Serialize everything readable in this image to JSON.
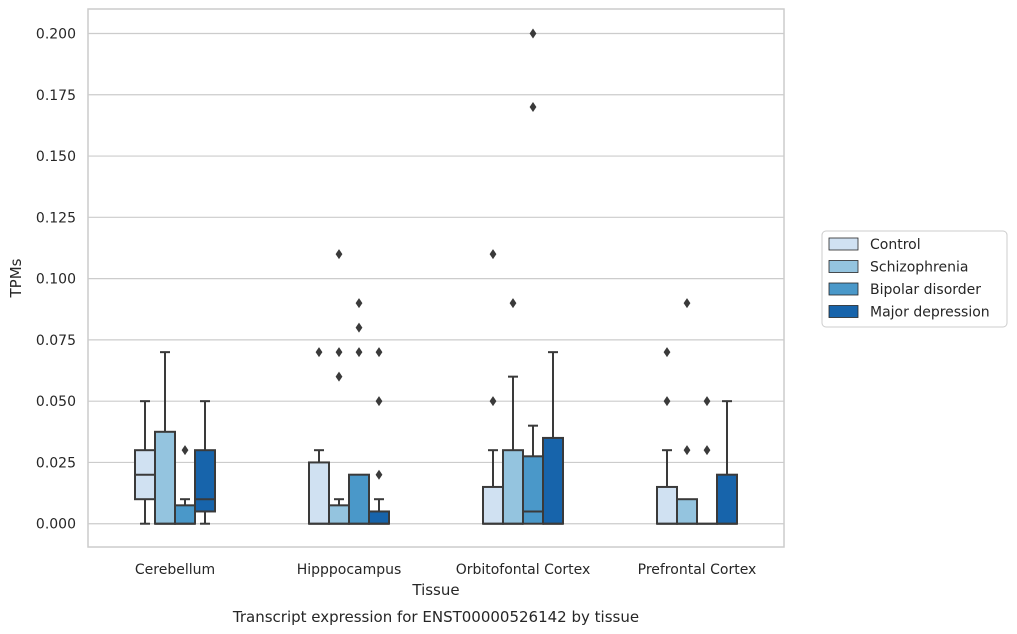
{
  "chart_data": {
    "type": "boxplot",
    "caption": "Transcript expression for ENST00000526142 by tissue",
    "xlabel": "Tissue",
    "ylabel": "TPMs",
    "ylim": [
      -0.0095,
      0.21
    ],
    "yticks": [
      0.0,
      0.025,
      0.05,
      0.075,
      0.1,
      0.125,
      0.15,
      0.175,
      0.2
    ],
    "ytick_labels": [
      "0.000",
      "0.025",
      "0.050",
      "0.075",
      "0.100",
      "0.125",
      "0.150",
      "0.175",
      "0.200"
    ],
    "grid": "horizontal",
    "legend_position": "right",
    "categories": [
      "Cerebellum",
      "Hipppocampus",
      "Orbitofontal Cortex",
      "Prefrontal Cortex"
    ],
    "series": [
      {
        "name": "Control",
        "color": "#d0e1f2",
        "boxes": [
          {
            "whislo": 0.0,
            "q1": 0.01,
            "med": 0.02,
            "q3": 0.03,
            "whishi": 0.05,
            "fliers": []
          },
          {
            "whislo": 0.0,
            "q1": 0.0,
            "med": 0.0,
            "q3": 0.025,
            "whishi": 0.03,
            "fliers": [
              0.07
            ]
          },
          {
            "whislo": 0.0,
            "q1": 0.0,
            "med": 0.0,
            "q3": 0.015,
            "whishi": 0.03,
            "fliers": [
              0.05,
              0.11
            ]
          },
          {
            "whislo": 0.0,
            "q1": 0.0,
            "med": 0.0,
            "q3": 0.015,
            "whishi": 0.03,
            "fliers": [
              0.05,
              0.07
            ]
          }
        ]
      },
      {
        "name": "Schizophrenia",
        "color": "#94c4df",
        "boxes": [
          {
            "whislo": 0.0,
            "q1": 0.0,
            "med": 0.0,
            "q3": 0.0375,
            "whishi": 0.07,
            "fliers": []
          },
          {
            "whislo": 0.0,
            "q1": 0.0,
            "med": 0.0,
            "q3": 0.0075,
            "whishi": 0.01,
            "fliers": [
              0.06,
              0.07,
              0.11
            ]
          },
          {
            "whislo": 0.0,
            "q1": 0.0,
            "med": 0.0,
            "q3": 0.03,
            "whishi": 0.06,
            "fliers": [
              0.09
            ]
          },
          {
            "whislo": 0.0,
            "q1": 0.0,
            "med": 0.0,
            "q3": 0.01,
            "whishi": 0.01,
            "fliers": [
              0.03,
              0.09
            ]
          }
        ]
      },
      {
        "name": "Bipolar disorder",
        "color": "#4a98c9",
        "boxes": [
          {
            "whislo": 0.0,
            "q1": 0.0,
            "med": 0.0,
            "q3": 0.0075,
            "whishi": 0.01,
            "fliers": [
              0.03
            ]
          },
          {
            "whislo": 0.0,
            "q1": 0.0,
            "med": 0.0,
            "q3": 0.02,
            "whishi": 0.02,
            "fliers": [
              0.07,
              0.08,
              0.09
            ]
          },
          {
            "whislo": 0.0,
            "q1": 0.0,
            "med": 0.005,
            "q3": 0.0275,
            "whishi": 0.04,
            "fliers": [
              0.17,
              0.2
            ]
          },
          {
            "whislo": 0.0,
            "q1": 0.0,
            "med": 0.0,
            "q3": 0.0,
            "whishi": 0.0,
            "fliers": [
              0.03,
              0.05
            ]
          }
        ]
      },
      {
        "name": "Major depression",
        "color": "#1764ab",
        "boxes": [
          {
            "whislo": 0.0,
            "q1": 0.005,
            "med": 0.01,
            "q3": 0.03,
            "whishi": 0.05,
            "fliers": []
          },
          {
            "whislo": 0.0,
            "q1": 0.0,
            "med": 0.0,
            "q3": 0.005,
            "whishi": 0.01,
            "fliers": [
              0.02,
              0.05,
              0.07
            ]
          },
          {
            "whislo": 0.0,
            "q1": 0.0,
            "med": 0.0,
            "q3": 0.035,
            "whishi": 0.07,
            "fliers": []
          },
          {
            "whislo": 0.0,
            "q1": 0.0,
            "med": 0.0,
            "q3": 0.02,
            "whishi": 0.05,
            "fliers": []
          }
        ]
      }
    ]
  }
}
